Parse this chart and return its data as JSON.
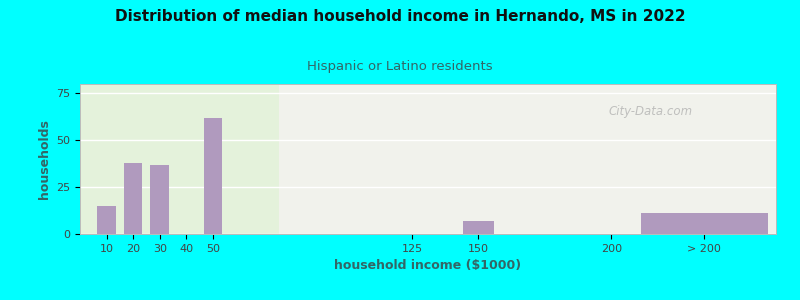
{
  "title": "Distribution of median household income in Hernando, MS in 2022",
  "subtitle": "Hispanic or Latino residents",
  "xlabel": "household income ($1000)",
  "ylabel": "households",
  "bg_outer": "#00FFFF",
  "bar_color": "#b09abe",
  "bar_positions": [
    10,
    20,
    30,
    50,
    150,
    235
  ],
  "bar_heights": [
    15,
    38,
    37,
    62,
    7,
    11
  ],
  "bar_widths": [
    7,
    7,
    7,
    7,
    12,
    48
  ],
  "tick_labels": [
    "10",
    "20",
    "30",
    "40",
    "50",
    "125",
    "150",
    "200",
    "> 200"
  ],
  "tick_positions": [
    10,
    20,
    30,
    40,
    50,
    125,
    150,
    200,
    235
  ],
  "ylim": [
    0,
    80
  ],
  "yticks": [
    0,
    25,
    50,
    75
  ],
  "xlim": [
    0,
    262
  ],
  "grid_color": "#ffffff",
  "watermark": "City-Data.com",
  "title_color": "#111111",
  "subtitle_color": "#336666",
  "axis_label_color": "#336666",
  "tick_color": "#444444"
}
